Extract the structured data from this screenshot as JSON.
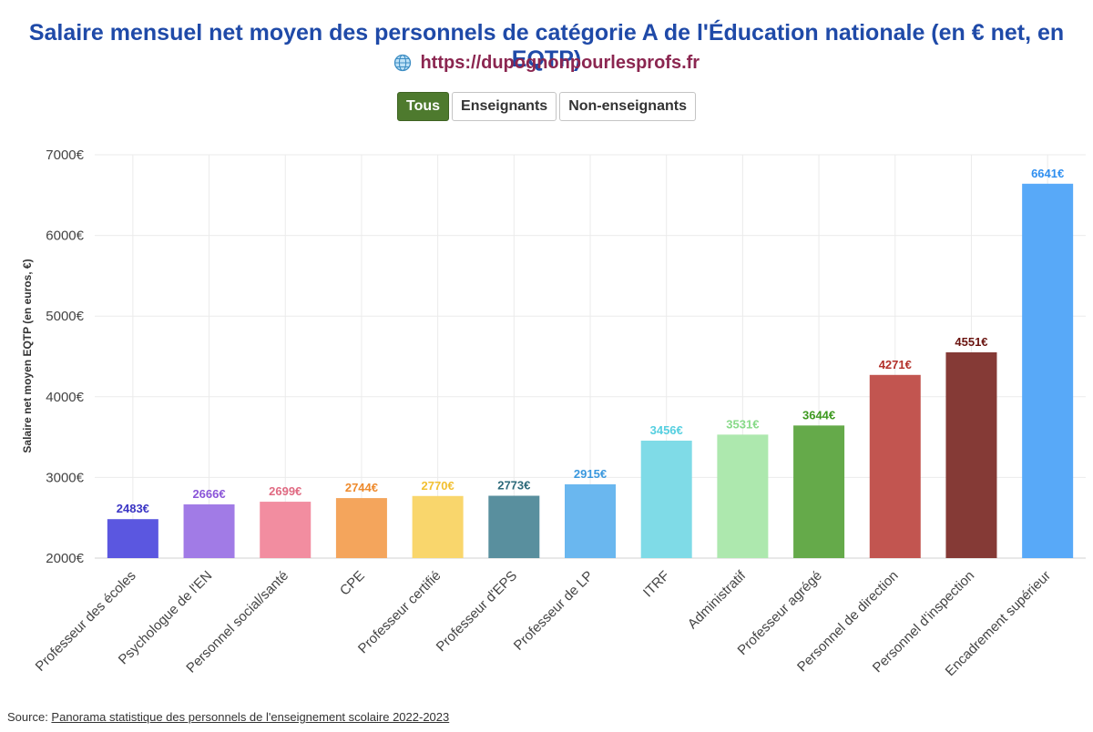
{
  "title": "Salaire mensuel net moyen des personnels de catégorie A de l'Éducation nationale (en € net, en EQTP)",
  "subtitle_url": "https://dupognonpourlesprofs.fr",
  "icons": {
    "globe": "globe-icon"
  },
  "filters": [
    {
      "label": "Tous",
      "active": true
    },
    {
      "label": "Enseignants",
      "active": false
    },
    {
      "label": "Non-enseignants",
      "active": false
    }
  ],
  "source": {
    "prefix": "Source: ",
    "link_text": "Panorama statistique des personnels de l'enseignement scolaire 2022-2023"
  },
  "chart_data": {
    "type": "bar",
    "ylabel": "Salaire net moyen EQTP (en euros, €)",
    "ylim": [
      2000,
      7000
    ],
    "yticks": [
      2000,
      3000,
      4000,
      5000,
      6000,
      7000
    ],
    "ytick_labels": [
      "2000€",
      "3000€",
      "4000€",
      "5000€",
      "6000€",
      "7000€"
    ],
    "value_suffix": "€",
    "grid": true,
    "categories": [
      "Professeur des écoles",
      "Psychologue de l'EN",
      "Personnel social/santé",
      "CPE",
      "Professeur certifié",
      "Professeur d'EPS",
      "Professeur de LP",
      "ITRF",
      "Administratif",
      "Professeur agrégé",
      "Personnel de direction",
      "Personnel d'inspection",
      "Encadrement supérieur"
    ],
    "values": [
      2483,
      2666,
      2699,
      2744,
      2770,
      2773,
      2915,
      3456,
      3531,
      3644,
      4271,
      4551,
      6641
    ],
    "colors": [
      "#5b57e0",
      "#a17be6",
      "#f28da0",
      "#f4a55c",
      "#f9d66c",
      "#598f9e",
      "#6ab7ef",
      "#7fdbe7",
      "#ade8ae",
      "#65aa4a",
      "#c25550",
      "#853a36",
      "#58a9f8"
    ],
    "label_colors": [
      "#3a35c4",
      "#8a55d8",
      "#e06a82",
      "#ee8a2c",
      "#f2c031",
      "#2e6b7b",
      "#3a98de",
      "#55cfe0",
      "#88da89",
      "#3e9a20",
      "#b3302a",
      "#6a1410",
      "#2f8ff0"
    ]
  }
}
